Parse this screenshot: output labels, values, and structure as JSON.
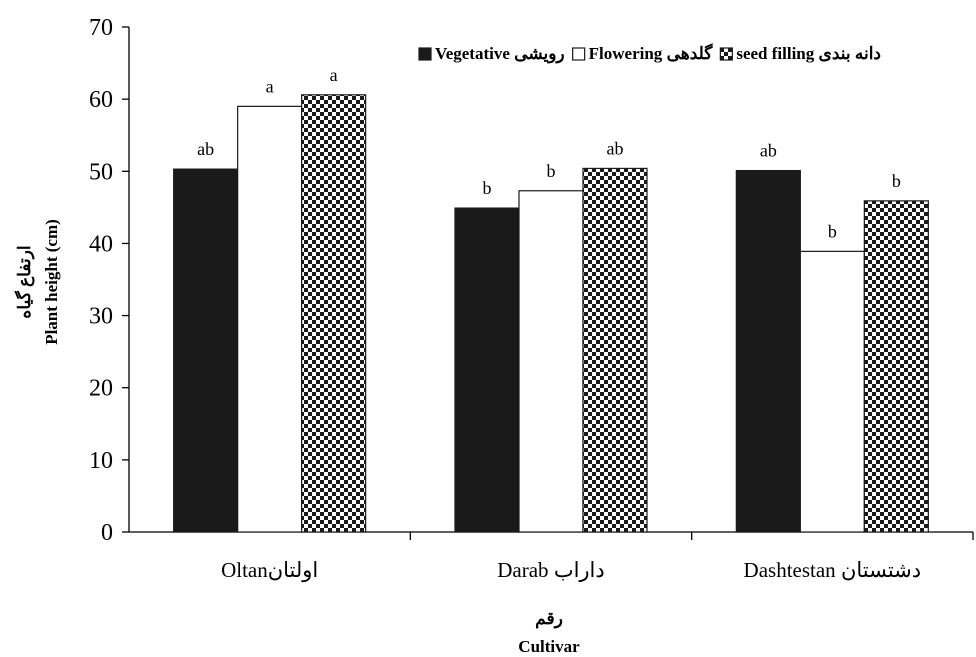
{
  "chart_data": {
    "type": "bar",
    "categories": [
      "Oltanاولتان",
      "Darab داراب",
      "Dashtestan دشتستان"
    ],
    "series": [
      {
        "name": "Vegetative رویشی",
        "values": [
          50.3,
          44.9,
          50.1
        ],
        "letters": [
          "ab",
          "b",
          "ab"
        ],
        "fill": "#1a1a1a"
      },
      {
        "name": "Flowering گلدهی",
        "values": [
          59.0,
          47.3,
          38.9
        ],
        "letters": [
          "a",
          "b",
          "b"
        ],
        "fill": "#ffffff"
      },
      {
        "name": "seed filling دانه بندی",
        "values": [
          60.6,
          50.4,
          45.9
        ],
        "letters": [
          "a",
          "ab",
          "b"
        ],
        "fill": "pattern"
      }
    ],
    "ylim": [
      0,
      70
    ],
    "yticks": [
      0,
      10,
      20,
      30,
      40,
      50,
      60,
      70
    ],
    "ylabel_fa": "ارتفاع گیاه",
    "ylabel": "Plant height (cm)",
    "xlabel_fa": "رقم",
    "xlabel": "Cultivar",
    "legend_position": "top-right",
    "grid": false
  }
}
